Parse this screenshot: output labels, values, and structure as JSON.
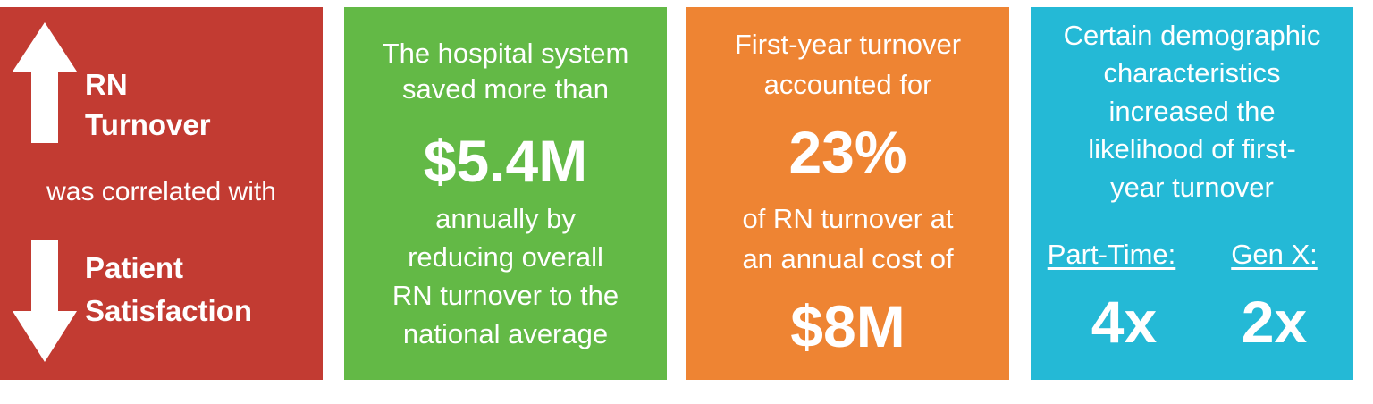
{
  "cards": [
    {
      "up_label": [
        "RN",
        "Turnover"
      ],
      "middle": "was correlated with",
      "down_label": [
        "Patient",
        "Satisfaction"
      ]
    },
    {
      "intro": [
        "The hospital system",
        "saved more than"
      ],
      "highlight": "$5.4M",
      "body": [
        "annually by",
        "reducing overall",
        "RN turnover to the",
        "national average"
      ]
    },
    {
      "intro": [
        "First-year turnover",
        "accounted for"
      ],
      "highlight": "23%",
      "body": [
        "of RN turnover at",
        "an annual cost of"
      ],
      "highlight2": "$8M"
    },
    {
      "intro": [
        "Certain demographic",
        "characteristics",
        "increased the",
        "likelihood of first-",
        "year turnover"
      ],
      "stats": [
        {
          "label": "Part-Time:",
          "value": "4x"
        },
        {
          "label": "Gen X:",
          "value": "2x"
        }
      ]
    }
  ]
}
